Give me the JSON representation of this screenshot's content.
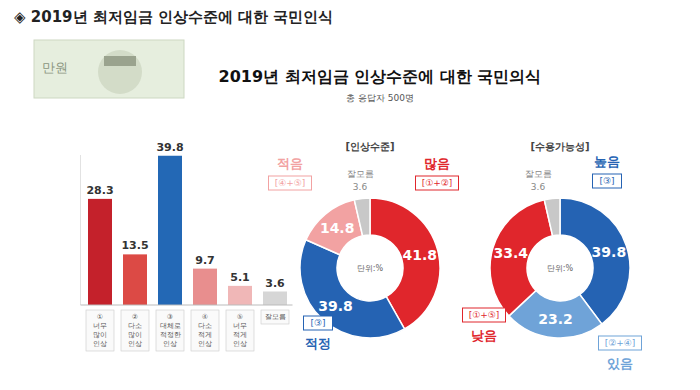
{
  "header": {
    "title": "◈ 2019년 최저임금 인상수준에 대한 국민인식",
    "banknote": "만원",
    "chart_title": "2019년 최저임금 인상수준에 대한 국민의식",
    "subtitle": "총 응답자 500명"
  },
  "chart_data": [
    {
      "type": "bar",
      "categories": [
        "① 너무 많이 인상",
        "② 다소 많이 인상",
        "③ 대체로 적정한 인상",
        "④ 다소 적게 인상",
        "⑤ 너무 적게 인상",
        "잘모름"
      ],
      "values": [
        28.3,
        13.5,
        39.8,
        9.7,
        5.1,
        3.6
      ],
      "colors": [
        "#c4212b",
        "#dc4a45",
        "#2368b5",
        "#e88e8e",
        "#f0b7b7",
        "#d6d6d6"
      ],
      "ylim": [
        0,
        40
      ],
      "data_labels": true,
      "tick_labels": "x"
    },
    {
      "type": "donut",
      "title": "[인상수준]",
      "unit_label": "단위:%",
      "categories": [
        "많음",
        "적정",
        "적음",
        "잘모름"
      ],
      "category_codes": [
        "[①+②]",
        "[③]",
        "[④+⑤]",
        null
      ],
      "values": [
        41.8,
        39.8,
        14.8,
        3.6
      ],
      "colors": [
        "#e0262c",
        "#2563b3",
        "#f2a2a2",
        "#c8c8c8"
      ],
      "data_labels": true
    },
    {
      "type": "donut",
      "title": "[수용가능성]",
      "unit_label": "단위:%",
      "categories": [
        "높음",
        "있음",
        "낮음",
        "잘모름"
      ],
      "category_codes": [
        "[③]",
        "[②+④]",
        "[①+⑤]",
        null
      ],
      "values": [
        39.8,
        23.2,
        33.4,
        3.6
      ],
      "colors": [
        "#2563b3",
        "#6fa3d8",
        "#e0262c",
        "#c8c8c8"
      ],
      "data_labels": true
    }
  ]
}
